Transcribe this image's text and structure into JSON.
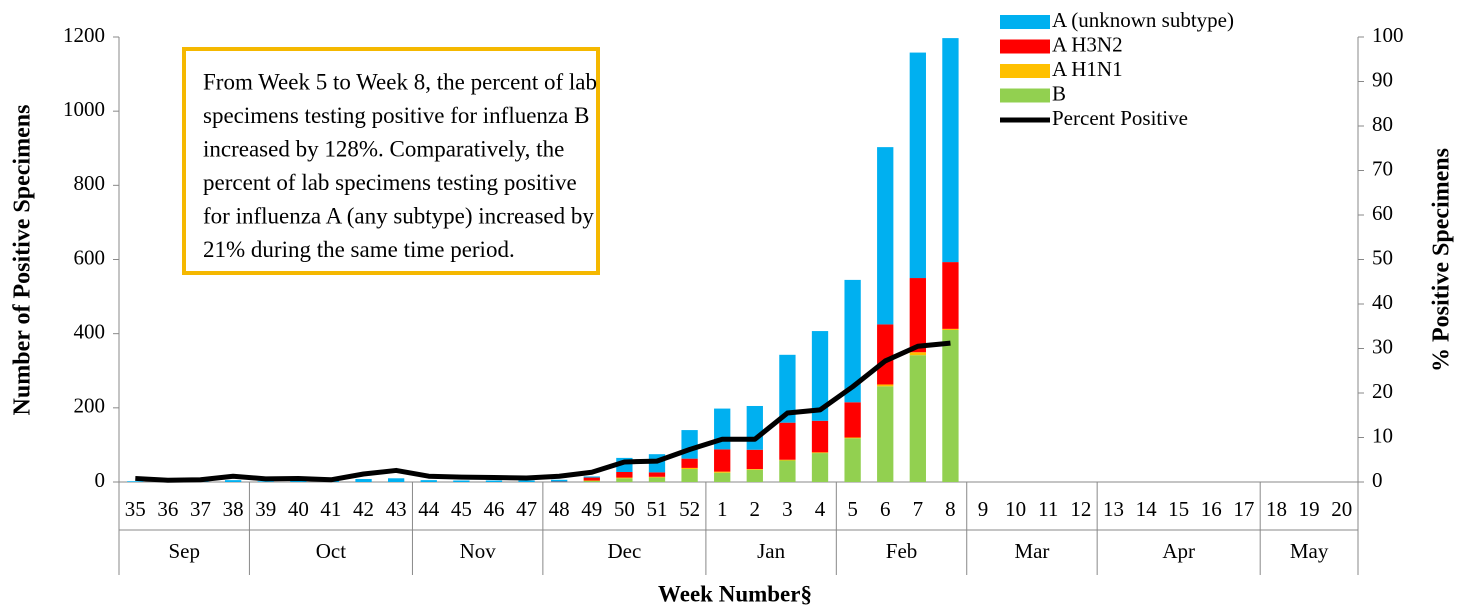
{
  "chart_data": {
    "type": "bar",
    "annotation": [
      "From Week 5 to Week 8, the percent of lab",
      "specimens testing positive for influenza B",
      "increased by 128%. Comparatively, the",
      "percent of lab specimens testing positive",
      "for influenza A (any subtype) increased by",
      "21% during the same time period."
    ],
    "x_label": "Week Number§",
    "y_label": "Number of Positive Specimens",
    "y2_label": "% Positive Specimens",
    "categories": [
      "35",
      "36",
      "37",
      "38",
      "39",
      "40",
      "41",
      "42",
      "43",
      "44",
      "45",
      "46",
      "47",
      "48",
      "49",
      "50",
      "51",
      "52",
      "1",
      "2",
      "3",
      "4",
      "5",
      "6",
      "7",
      "8",
      "9",
      "10",
      "11",
      "12",
      "13",
      "14",
      "15",
      "16",
      "17",
      "18",
      "19",
      "20"
    ],
    "x_groups": [
      {
        "label": "Sep",
        "count": 4
      },
      {
        "label": "Oct",
        "count": 5
      },
      {
        "label": "Nov",
        "count": 4
      },
      {
        "label": "Dec",
        "count": 5
      },
      {
        "label": "Jan",
        "count": 4
      },
      {
        "label": "Feb",
        "count": 4
      },
      {
        "label": "Mar",
        "count": 4
      },
      {
        "label": "Apr",
        "count": 5
      },
      {
        "label": "May",
        "count": 3
      }
    ],
    "series": [
      {
        "name": "B",
        "color": "#92d050",
        "values": [
          0,
          0,
          0,
          0,
          0,
          0,
          0,
          0,
          0,
          0,
          0,
          0,
          0,
          0,
          3,
          10,
          12,
          35,
          25,
          33,
          58,
          78,
          118,
          258,
          342,
          410,
          null,
          null,
          null,
          null,
          null,
          null,
          null,
          null,
          null,
          null,
          null,
          null
        ]
      },
      {
        "name": "A H1N1",
        "color": "#ffc000",
        "values": [
          0,
          0,
          0,
          0,
          0,
          0,
          0,
          0,
          0,
          0,
          0,
          0,
          0,
          0,
          1,
          2,
          2,
          3,
          3,
          2,
          2,
          2,
          2,
          5,
          8,
          3,
          null,
          null,
          null,
          null,
          null,
          null,
          null,
          null,
          null,
          null,
          null,
          null
        ]
      },
      {
        "name": "A H3N2",
        "color": "#ff0000",
        "values": [
          0,
          0,
          0,
          0,
          0,
          0,
          0,
          0,
          0,
          0,
          0,
          0,
          0,
          1,
          8,
          15,
          12,
          25,
          60,
          52,
          100,
          85,
          95,
          162,
          200,
          180,
          null,
          null,
          null,
          null,
          null,
          null,
          null,
          null,
          null,
          null,
          null,
          null
        ]
      },
      {
        "name": "A (unknown subtype)",
        "color": "#00b0f0",
        "values": [
          2,
          1,
          1,
          5,
          2,
          3,
          3,
          8,
          10,
          5,
          4,
          4,
          4,
          5,
          3,
          38,
          49,
          77,
          110,
          118,
          183,
          242,
          330,
          478,
          608,
          604,
          null,
          null,
          null,
          null,
          null,
          null,
          null,
          null,
          null,
          null,
          null,
          null
        ]
      },
      {
        "name": "Percent Positive",
        "color": "#000000",
        "type": "line",
        "axis": "y2",
        "values": [
          0.8,
          0.4,
          0.5,
          1.3,
          0.7,
          0.8,
          0.5,
          1.8,
          2.6,
          1.3,
          1.1,
          1.0,
          0.9,
          1.3,
          2.2,
          4.5,
          4.7,
          7.3,
          9.6,
          9.6,
          15.5,
          16.2,
          21.4,
          27.2,
          30.5,
          31.2,
          null,
          null,
          null,
          null,
          null,
          null,
          null,
          null,
          null,
          null,
          null,
          null
        ]
      }
    ],
    "legend_order": [
      3,
      2,
      1,
      0,
      4
    ],
    "ylim": [
      0,
      1200
    ],
    "yticks": [
      0,
      200,
      400,
      600,
      800,
      1000,
      1200
    ],
    "y2lim": [
      0,
      100
    ],
    "y2ticks": [
      0,
      10,
      20,
      30,
      40,
      50,
      60,
      70,
      80,
      90,
      100
    ],
    "grid": false
  }
}
